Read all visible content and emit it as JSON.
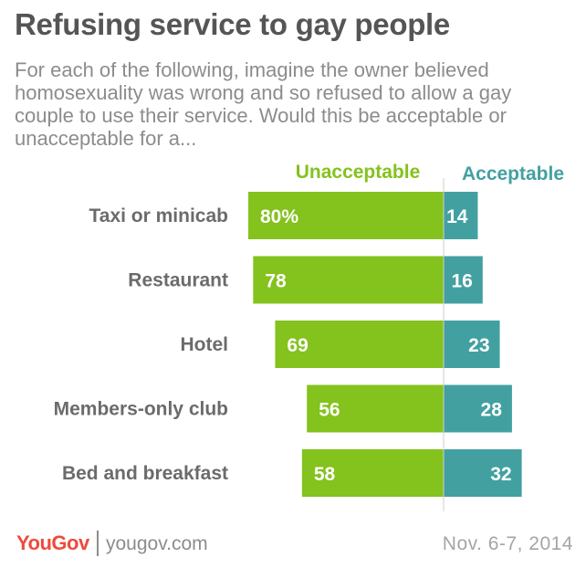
{
  "title": "Refusing service to gay people",
  "subtitle": "For each of the following, imagine the owner believed homosexuality was wrong and so refused to allow a gay couple to use their service. Would this be acceptable or unacceptable for a...",
  "footer": {
    "logo": "YouGov",
    "site": "yougov.com",
    "date": "Nov. 6-7, 2014"
  },
  "colors": {
    "unacceptable": "#84c21d",
    "acceptable": "#43a0a1",
    "label": "#6b6b6b"
  },
  "chart_data": {
    "type": "bar",
    "orientation": "horizontal-diverging",
    "categories": [
      "Taxi or minicab",
      "Restaurant",
      "Hotel",
      "Members-only club",
      "Bed and breakfast"
    ],
    "series": [
      {
        "name": "Unacceptable",
        "values": [
          80,
          78,
          69,
          56,
          58
        ],
        "labels": [
          "80%",
          "78",
          "69",
          "56",
          "58"
        ]
      },
      {
        "name": "Acceptable",
        "values": [
          14,
          16,
          23,
          28,
          32
        ],
        "labels": [
          "14",
          "16",
          "23",
          "28",
          "32"
        ]
      }
    ],
    "unit": "%",
    "grid": false,
    "legend": "top"
  }
}
